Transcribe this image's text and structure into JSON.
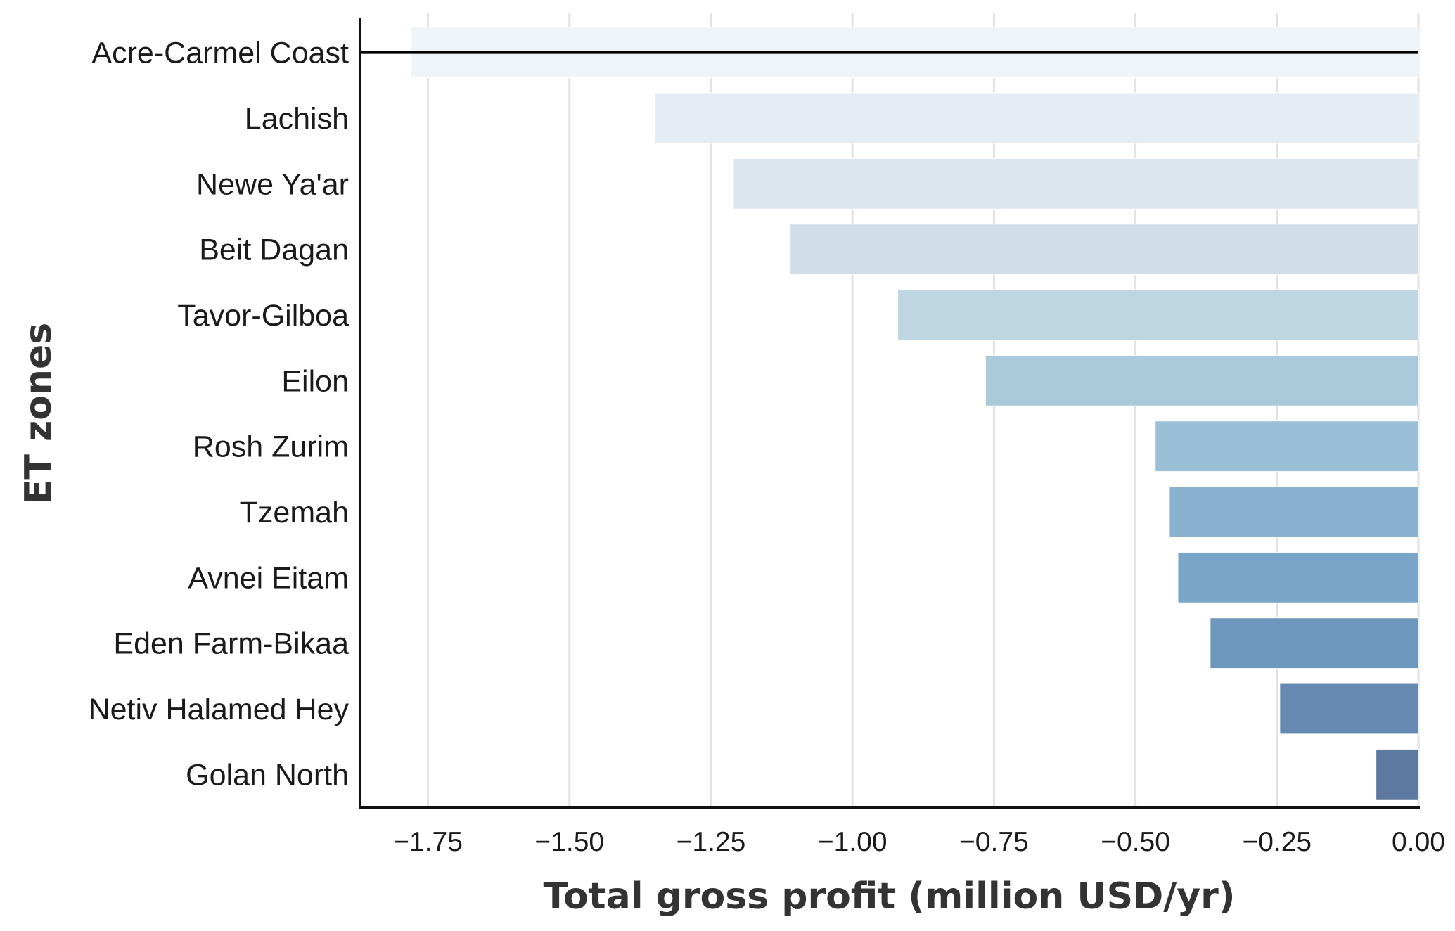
{
  "chart_data": {
    "type": "bar",
    "orientation": "horizontal",
    "title": "",
    "xlabel": "Total gross profit (million USD/yr)",
    "ylabel": "ET zones",
    "categories": [
      "Acre-Carmel Coast",
      "Lachish",
      "Newe Ya'ar",
      "Beit Dagan",
      "Tavor-Gilboa",
      "Eilon",
      "Rosh Zurim",
      "Tzemah",
      "Avnei Eitam",
      "Eden Farm-Bikaa",
      "Netiv Halamed Hey",
      "Golan North"
    ],
    "values": [
      -1.78,
      -1.35,
      -1.21,
      -1.11,
      -0.92,
      -0.765,
      -0.465,
      -0.44,
      -0.425,
      -0.368,
      -0.245,
      -0.075
    ],
    "colors": [
      "#eff4f9",
      "#e4ecf4",
      "#dce6ef",
      "#cfdee8",
      "#bed6e1",
      "#aac9db",
      "#9bbfd6",
      "#89b2d0",
      "#79a5c9",
      "#6e97be",
      "#6589b0",
      "#5e79a0"
    ],
    "xlim": [
      -1.87,
      0.0
    ],
    "xticks": [
      -1.75,
      -1.5,
      -1.25,
      -1.0,
      -0.75,
      -0.5,
      -0.25,
      0.0
    ],
    "xtick_labels": [
      "−1.75",
      "−1.50",
      "−1.25",
      "−1.00",
      "−0.75",
      "−0.50",
      "−0.25",
      "0.00"
    ],
    "reference_line": {
      "y_category": "Acre-Carmel Coast",
      "from": -1.87,
      "to": 0.0,
      "color": "#000000"
    },
    "grid": {
      "x": true,
      "y": false
    }
  }
}
